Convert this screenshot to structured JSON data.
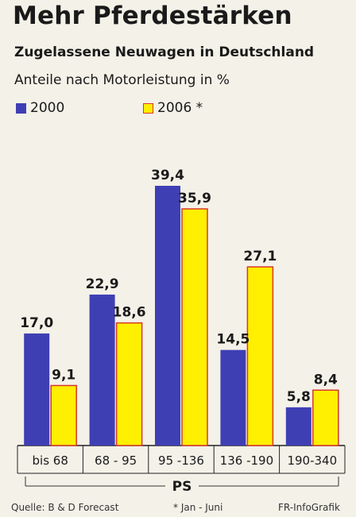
{
  "header": {
    "title": "Mehr Pferdestärken",
    "subtitle": "Zugelassene Neuwagen in Deutschland",
    "unit_note": "Anteile nach Motorleistung in %"
  },
  "legend": {
    "series_2000": "2000",
    "series_2006": "2006 *"
  },
  "footer": {
    "source": "Quelle: B & D Forecast",
    "note": "* Jan - Juni",
    "credit": "FR-InfoGrafik"
  },
  "colors": {
    "series_2000": "#3f3fb4",
    "series_2006_fill": "#ffef00",
    "series_2006_border": "#d8372a"
  },
  "chart_data": {
    "type": "bar",
    "title": "Mehr Pferdestärken",
    "subtitle": "Zugelassene Neuwagen in Deutschland",
    "ylabel": "Anteile nach Motorleistung in %",
    "xlabel": "PS",
    "categories": [
      "bis 68",
      "68 - 95",
      "95 -136",
      "136 -190",
      "190-340"
    ],
    "series": [
      {
        "name": "2000",
        "values": [
          17.0,
          22.9,
          39.4,
          14.5,
          5.8
        ],
        "labels": [
          "17,0",
          "22,9",
          "39,4",
          "14,5",
          "5,8"
        ]
      },
      {
        "name": "2006 *",
        "values": [
          9.1,
          18.6,
          35.9,
          27.1,
          8.4
        ],
        "labels": [
          "9,1",
          "18,6",
          "35,9",
          "27,1",
          "8,4"
        ]
      }
    ],
    "ylim": [
      0,
      40
    ],
    "grid": false,
    "legend_position": "top-left"
  }
}
